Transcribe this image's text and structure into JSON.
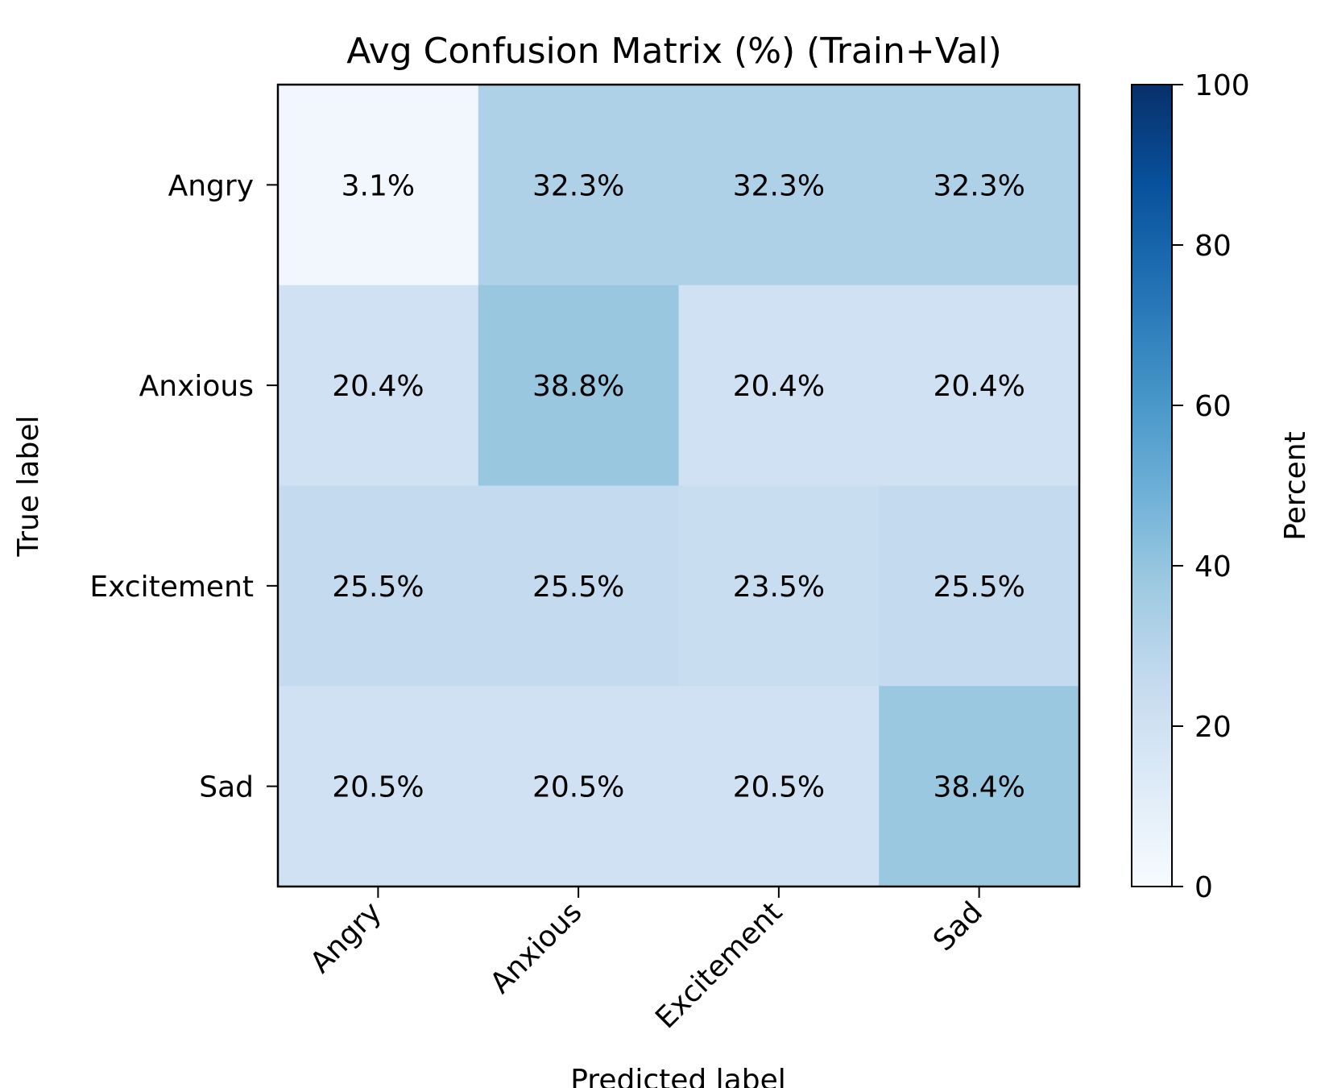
{
  "chart_data": {
    "type": "heatmap",
    "title": "Avg Confusion Matrix (%) (Train+Val)",
    "xlabel": "Predicted label",
    "ylabel": "True label",
    "x_categories": [
      "Angry",
      "Anxious",
      "Excitement",
      "Sad"
    ],
    "y_categories": [
      "Angry",
      "Anxious",
      "Excitement",
      "Sad"
    ],
    "values": [
      [
        3.1,
        32.3,
        32.3,
        32.3
      ],
      [
        20.4,
        38.8,
        20.4,
        20.4
      ],
      [
        25.5,
        25.5,
        23.5,
        25.5
      ],
      [
        20.5,
        20.5,
        20.5,
        38.4
      ]
    ],
    "cell_labels": [
      [
        "3.1%",
        "32.3%",
        "32.3%",
        "32.3%"
      ],
      [
        "20.4%",
        "38.8%",
        "20.4%",
        "20.4%"
      ],
      [
        "25.5%",
        "25.5%",
        "23.5%",
        "25.5%"
      ],
      [
        "20.5%",
        "20.5%",
        "20.5%",
        "38.4%"
      ]
    ],
    "colorbar": {
      "label": "Percent",
      "range": [
        0,
        100
      ],
      "ticks": [
        0,
        20,
        40,
        60,
        80,
        100
      ],
      "colormap": "Blues",
      "colors": [
        "#f7fbff",
        "#deebf7",
        "#c6dbef",
        "#9ecae1",
        "#6baed6",
        "#4292c6",
        "#2171b5",
        "#08519c",
        "#08306b"
      ]
    },
    "x_tick_rotation": 45,
    "grid": false
  }
}
